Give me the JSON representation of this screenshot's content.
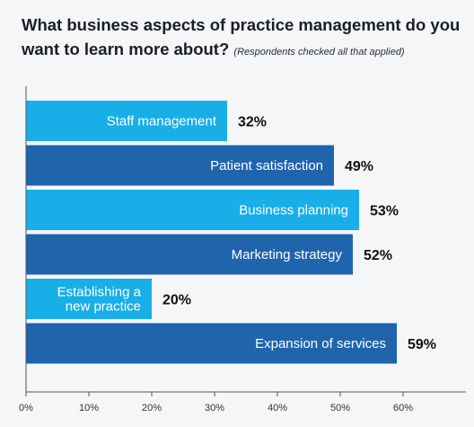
{
  "title": "What business aspects of practice management do you want to learn more about?",
  "note": "(Respondents checked all that applied)",
  "chart_data": {
    "type": "bar",
    "orientation": "horizontal",
    "title": "What business aspects of practice management do you want to learn more about?",
    "subtitle": "(Respondents checked all that applied)",
    "categories": [
      [
        "Staff management"
      ],
      [
        "Patient satisfaction"
      ],
      [
        "Business planning"
      ],
      [
        "Marketing strategy"
      ],
      [
        "Establishing a",
        "new practice"
      ],
      [
        "Expansion of services"
      ]
    ],
    "values": [
      32,
      49,
      53,
      52,
      20,
      59
    ],
    "value_labels": [
      "32%",
      "49%",
      "53%",
      "52%",
      "20%",
      "59%"
    ],
    "bar_colors": [
      "#18aee8",
      "#1f64ad",
      "#18aee8",
      "#1f64ad",
      "#18aee8",
      "#1f64ad"
    ],
    "xlim": [
      0,
      60
    ],
    "xticks": [
      0,
      10,
      20,
      30,
      40,
      50,
      60
    ],
    "xtick_labels": [
      "0%",
      "10%",
      "20%",
      "30%",
      "40%",
      "50%",
      "60%"
    ],
    "grid": false,
    "legend": false
  }
}
